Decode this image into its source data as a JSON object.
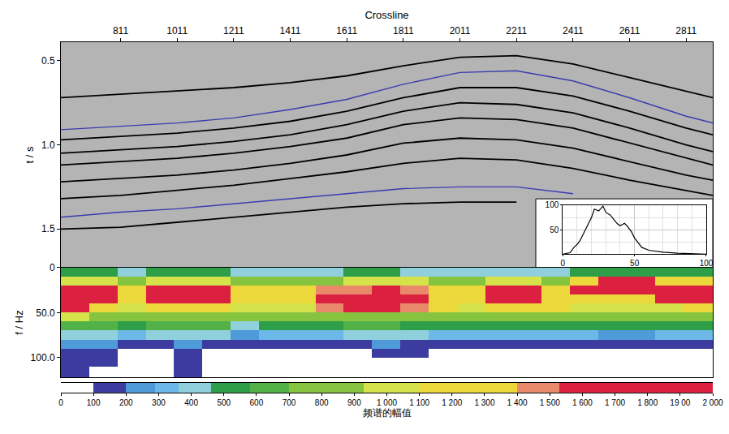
{
  "chart_data": [
    {
      "type": "line",
      "xlabel": "Crossline",
      "ylabel": "t / s",
      "xlim": [
        600,
        2905
      ],
      "ylim": [
        1.73,
        0.39
      ],
      "xticks": [
        811,
        1011,
        1211,
        1411,
        1611,
        1811,
        2011,
        2211,
        2411,
        2611,
        2811
      ],
      "yticks": [
        0.5,
        {
          "value": 1,
          "label": "1.0"
        },
        1.5
      ],
      "grid": false,
      "x": [
        600,
        811,
        1011,
        1211,
        1411,
        1611,
        1811,
        2011,
        2211,
        2411,
        2611,
        2811,
        2905
      ],
      "series": [
        {
          "color": "#3b3bb0",
          "line_style": "solid",
          "values": [
            0.91,
            0.89,
            0.87,
            0.84,
            0.79,
            0.73,
            0.64,
            0.57,
            0.56,
            0.62,
            0.72,
            0.83,
            0.87
          ]
        },
        {
          "color": "#3b3bb0",
          "line_style": "solid",
          "values": [
            1.43,
            1.4,
            1.38,
            1.35,
            1.32,
            1.29,
            1.26,
            1.25,
            1.25,
            1.29,
            null,
            null,
            null
          ]
        },
        {
          "color": "#000000",
          "line_style": "solid",
          "values": [
            0.72,
            0.7,
            0.68,
            0.66,
            0.63,
            0.59,
            0.53,
            0.48,
            0.47,
            0.52,
            0.6,
            0.68,
            0.72
          ]
        },
        {
          "color": "#000000",
          "line_style": "solid",
          "values": [
            0.97,
            0.95,
            0.93,
            0.9,
            0.86,
            0.8,
            0.72,
            0.66,
            0.66,
            0.71,
            0.8,
            0.9,
            0.94
          ]
        },
        {
          "color": "#000000",
          "line_style": "solid",
          "values": [
            1.05,
            1.03,
            1.01,
            0.98,
            0.94,
            0.88,
            0.8,
            0.75,
            0.76,
            0.81,
            0.9,
            1.0,
            1.04
          ]
        },
        {
          "color": "#000000",
          "line_style": "solid",
          "values": [
            1.12,
            1.1,
            1.08,
            1.05,
            1.01,
            0.96,
            0.88,
            0.84,
            0.85,
            0.9,
            0.99,
            1.08,
            1.12
          ]
        },
        {
          "color": "#000000",
          "line_style": "solid",
          "values": [
            1.22,
            1.2,
            1.18,
            1.15,
            1.11,
            1.06,
            0.99,
            0.96,
            0.97,
            1.02,
            1.1,
            1.18,
            1.21
          ]
        },
        {
          "color": "#000000",
          "line_style": "solid",
          "values": [
            1.32,
            1.3,
            1.27,
            1.24,
            1.2,
            1.16,
            1.11,
            1.08,
            1.09,
            1.14,
            1.21,
            1.27,
            1.3
          ]
        },
        {
          "color": "#000000",
          "line_style": "solid",
          "values": [
            1.5,
            1.49,
            1.46,
            1.43,
            1.4,
            1.37,
            1.35,
            1.34,
            1.34,
            null,
            null,
            null,
            null
          ]
        }
      ]
    },
    {
      "type": "heatmap",
      "ylabel": "f / Hz",
      "xlim": [
        600,
        2905
      ],
      "ylim": [
        122,
        0
      ],
      "yticks": [
        0,
        {
          "value": 50,
          "label": "50.0"
        },
        {
          "value": 100,
          "label": "100.0"
        }
      ],
      "tick_labels": "y",
      "grid": false,
      "x_edges": [
        600,
        700,
        800,
        900,
        1000,
        1100,
        1200,
        1300,
        1400,
        1500,
        1600,
        1700,
        1800,
        1900,
        2000,
        2100,
        2200,
        2300,
        2400,
        2500,
        2600,
        2700,
        2800,
        3000
      ],
      "y_edges": [
        0,
        10,
        20,
        30,
        40,
        50,
        60,
        70,
        80,
        90,
        100,
        110,
        120,
        130
      ],
      "z": [
        [
          500,
          1000,
          1700,
          1750,
          1550,
          950,
          650,
          420,
          250,
          150,
          120,
          110,
          100
        ],
        [
          480,
          950,
          1650,
          1700,
          1350,
          900,
          620,
          400,
          230,
          130,
          110,
          60,
          0
        ],
        [
          450,
          900,
          1150,
          1200,
          1050,
          820,
          560,
          350,
          180,
          80,
          20,
          0,
          0
        ],
        [
          460,
          950,
          1600,
          1650,
          1250,
          850,
          580,
          360,
          190,
          90,
          30,
          0,
          0
        ],
        [
          470,
          1000,
          1750,
          1800,
          1300,
          880,
          600,
          400,
          250,
          160,
          130,
          120,
          110
        ],
        [
          460,
          950,
          1650,
          1700,
          1200,
          850,
          580,
          360,
          190,
          90,
          30,
          0,
          0
        ],
        [
          420,
          850,
          1100,
          1150,
          950,
          700,
          450,
          280,
          150,
          60,
          10,
          0,
          0
        ],
        [
          420,
          880,
          1150,
          1200,
          980,
          720,
          460,
          290,
          160,
          70,
          10,
          0,
          0
        ],
        [
          440,
          900,
          1250,
          1300,
          1050,
          780,
          520,
          330,
          170,
          80,
          20,
          0,
          0
        ],
        [
          450,
          920,
          1400,
          1650,
          1450,
          850,
          560,
          350,
          180,
          80,
          20,
          0,
          0
        ],
        [
          460,
          950,
          1500,
          1750,
          1550,
          880,
          580,
          370,
          190,
          90,
          30,
          0,
          0
        ],
        [
          460,
          950,
          1550,
          1800,
          1600,
          900,
          600,
          380,
          200,
          100,
          40,
          0,
          0
        ],
        [
          450,
          930,
          1450,
          1700,
          1500,
          860,
          570,
          360,
          190,
          120,
          40,
          0,
          0
        ],
        [
          440,
          900,
          1250,
          1350,
          1100,
          800,
          540,
          340,
          170,
          80,
          20,
          0,
          0
        ],
        [
          430,
          900,
          1200,
          1300,
          1050,
          780,
          520,
          320,
          160,
          70,
          10,
          0,
          0
        ],
        [
          450,
          950,
          1600,
          1650,
          1200,
          820,
          550,
          340,
          170,
          80,
          20,
          0,
          0
        ],
        [
          450,
          950,
          1650,
          1600,
          1150,
          800,
          540,
          330,
          170,
          80,
          20,
          0,
          0
        ],
        [
          440,
          920,
          1300,
          1350,
          1100,
          780,
          520,
          320,
          160,
          70,
          10,
          0,
          0
        ],
        [
          460,
          1300,
          1550,
          1300,
          1050,
          760,
          500,
          300,
          150,
          60,
          10,
          0,
          0
        ],
        [
          480,
          1600,
          1700,
          1250,
          1000,
          740,
          480,
          280,
          140,
          50,
          0,
          0,
          0
        ],
        [
          480,
          1700,
          1650,
          1250,
          1000,
          740,
          480,
          280,
          140,
          50,
          0,
          0,
          0
        ],
        [
          460,
          1100,
          1600,
          1550,
          1050,
          760,
          500,
          300,
          150,
          60,
          10,
          0,
          0
        ],
        [
          460,
          1150,
          1650,
          1600,
          1100,
          780,
          520,
          320,
          160,
          70,
          20,
          0,
          0
        ]
      ],
      "colorbar": {
        "title": "频谱的幅值",
        "range": [
          0,
          2000
        ],
        "ticks": [
          0,
          100,
          200,
          300,
          400,
          500,
          600,
          700,
          800,
          900,
          {
            "value": 1000,
            "label": "1 000"
          },
          {
            "value": 1100,
            "label": "1 100"
          },
          {
            "value": 1200,
            "label": "1 200"
          },
          {
            "value": 1300,
            "label": "1 300"
          },
          {
            "value": 1400,
            "label": "1 400"
          },
          {
            "value": 1500,
            "label": "1 500"
          },
          {
            "value": 1600,
            "label": "1 600"
          },
          {
            "value": 1700,
            "label": "1 700"
          },
          {
            "value": 1800,
            "label": "1 800"
          },
          {
            "value": 1900,
            "label": "19 00"
          },
          {
            "value": 2000,
            "label": "2 000"
          }
        ],
        "levels": [
          {
            "from": 0,
            "to": 100,
            "color": "#ffffff"
          },
          {
            "from": 100,
            "to": 200,
            "color": "#3c3ca0"
          },
          {
            "from": 200,
            "to": 290,
            "color": "#4f9ad8"
          },
          {
            "from": 290,
            "to": 360,
            "color": "#6cb8e8"
          },
          {
            "from": 360,
            "to": 460,
            "color": "#8fd0dc"
          },
          {
            "from": 460,
            "to": 580,
            "color": "#2e9e48"
          },
          {
            "from": 580,
            "to": 700,
            "color": "#52b248"
          },
          {
            "from": 700,
            "to": 930,
            "color": "#86c440"
          },
          {
            "from": 930,
            "to": 1100,
            "color": "#d6e24a"
          },
          {
            "from": 1100,
            "to": 1400,
            "color": "#ecd83a"
          },
          {
            "from": 1400,
            "to": 1530,
            "color": "#e88a6a"
          },
          {
            "from": 1530,
            "to": 2000,
            "color": "#dc2040"
          }
        ]
      }
    },
    {
      "type": "line",
      "xlim": [
        0,
        100
      ],
      "ylim": [
        0,
        100
      ],
      "xticks": [
        0,
        50,
        100
      ],
      "yticks": [
        50,
        100
      ],
      "grid": true,
      "x": [
        0,
        5,
        8,
        10,
        12,
        15,
        18,
        20,
        22,
        25,
        28,
        30,
        33,
        35,
        38,
        40,
        43,
        45,
        48,
        50,
        55,
        60,
        70,
        80,
        90,
        100
      ],
      "series": [
        {
          "color": "#000000",
          "line_style": "solid",
          "values": [
            0,
            3,
            15,
            20,
            28,
            45,
            62,
            75,
            92,
            88,
            98,
            85,
            80,
            72,
            62,
            58,
            63,
            57,
            45,
            33,
            14,
            8,
            4,
            2,
            1,
            0
          ]
        }
      ]
    }
  ]
}
